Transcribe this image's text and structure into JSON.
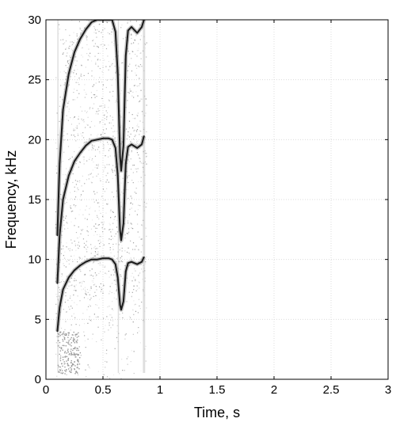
{
  "chart_data": {
    "type": "spectrogram",
    "title": "",
    "xlabel": "Time, s",
    "ylabel": "Frequency, kHz",
    "xlim": [
      0,
      3
    ],
    "ylim": [
      0,
      30
    ],
    "x_ticks": [
      0,
      0.5,
      1,
      1.5,
      2,
      2.5,
      3
    ],
    "x_tick_labels": [
      "0",
      "0.5",
      "1",
      "1.5",
      "2",
      "2.5",
      "3"
    ],
    "y_ticks": [
      0,
      5,
      10,
      15,
      20,
      25,
      30
    ],
    "y_tick_labels": [
      "0",
      "5",
      "10",
      "15",
      "20",
      "25",
      "30"
    ],
    "grid": true,
    "colormap": "grayscale",
    "signal_time_range": [
      0.1,
      0.86
    ],
    "series": [
      {
        "harmonic": 1,
        "x": [
          0.1,
          0.12,
          0.15,
          0.2,
          0.25,
          0.3,
          0.35,
          0.4,
          0.45,
          0.5,
          0.55,
          0.58,
          0.61,
          0.63,
          0.65,
          0.66,
          0.68,
          0.7,
          0.72,
          0.75,
          0.8,
          0.84,
          0.86
        ],
        "y": [
          4.0,
          6.0,
          7.5,
          8.5,
          9.1,
          9.5,
          9.8,
          10.0,
          10.0,
          10.1,
          10.1,
          10.0,
          9.6,
          8.5,
          6.2,
          5.8,
          6.5,
          9.0,
          9.7,
          9.8,
          9.6,
          9.8,
          10.2
        ]
      },
      {
        "harmonic": 2,
        "x": [
          0.1,
          0.12,
          0.15,
          0.2,
          0.25,
          0.3,
          0.35,
          0.4,
          0.45,
          0.5,
          0.55,
          0.58,
          0.61,
          0.63,
          0.65,
          0.66,
          0.68,
          0.7,
          0.72,
          0.75,
          0.8,
          0.84,
          0.86
        ],
        "y": [
          8.0,
          12.0,
          15.0,
          17.0,
          18.2,
          18.9,
          19.5,
          19.9,
          20.0,
          20.1,
          20.1,
          20.0,
          19.3,
          17.0,
          12.4,
          11.6,
          13.0,
          18.0,
          19.4,
          19.6,
          19.3,
          19.6,
          20.3
        ]
      },
      {
        "harmonic": 3,
        "x": [
          0.1,
          0.12,
          0.15,
          0.2,
          0.25,
          0.3,
          0.35,
          0.4,
          0.45,
          0.5,
          0.55,
          0.58,
          0.61,
          0.63,
          0.65,
          0.66,
          0.68,
          0.7,
          0.72,
          0.75,
          0.8,
          0.84,
          0.86
        ],
        "y": [
          12.0,
          18.0,
          22.5,
          25.5,
          27.3,
          28.4,
          29.2,
          29.8,
          30.0,
          30.0,
          30.0,
          30.0,
          29.0,
          25.5,
          18.6,
          17.4,
          19.5,
          27.0,
          29.1,
          29.4,
          28.9,
          29.4,
          30.0
        ]
      }
    ]
  }
}
